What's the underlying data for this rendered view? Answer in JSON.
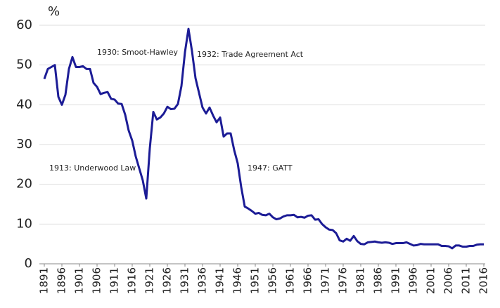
{
  "chart_data": {
    "type": "line",
    "ylabel": "%",
    "x": [
      1891,
      1892,
      1893,
      1894,
      1895,
      1896,
      1897,
      1898,
      1899,
      1900,
      1901,
      1902,
      1903,
      1904,
      1905,
      1906,
      1907,
      1908,
      1909,
      1910,
      1911,
      1912,
      1913,
      1914,
      1915,
      1916,
      1917,
      1918,
      1919,
      1920,
      1921,
      1922,
      1923,
      1924,
      1925,
      1926,
      1927,
      1928,
      1929,
      1930,
      1931,
      1932,
      1933,
      1934,
      1935,
      1936,
      1937,
      1938,
      1939,
      1940,
      1941,
      1942,
      1943,
      1944,
      1945,
      1946,
      1947,
      1948,
      1949,
      1950,
      1951,
      1952,
      1953,
      1954,
      1955,
      1956,
      1957,
      1958,
      1959,
      1960,
      1961,
      1962,
      1963,
      1964,
      1965,
      1966,
      1967,
      1968,
      1969,
      1970,
      1971,
      1972,
      1973,
      1974,
      1975,
      1976,
      1977,
      1978,
      1979,
      1980,
      1981,
      1982,
      1983,
      1984,
      1985,
      1986,
      1987,
      1988,
      1989,
      1990,
      1991,
      1992,
      1993,
      1994,
      1995,
      1996,
      1997,
      1998,
      1999,
      2000,
      2001,
      2002,
      2003,
      2004,
      2005,
      2006,
      2007,
      2008,
      2009,
      2010,
      2011,
      2012,
      2013,
      2014,
      2015,
      2016
    ],
    "series": [
      {
        "color": "#1c1c96",
        "values": [
          46.5,
          49,
          49.5,
          50,
          42,
          40,
          42.5,
          49,
          52,
          49.5,
          49.5,
          49.7,
          49,
          49,
          45.5,
          44.5,
          42.7,
          43,
          43.2,
          41.5,
          41.3,
          40.3,
          40.2,
          37.5,
          33.5,
          31,
          27,
          24,
          21,
          16.4,
          29,
          38.2,
          36.3,
          36.8,
          37.8,
          39.5,
          38.9,
          39,
          40.2,
          44.7,
          53.2,
          59.1,
          53.5,
          46.7,
          43,
          39.3,
          37.8,
          39.3,
          37.3,
          35.6,
          36.8,
          32,
          32.8,
          32.8,
          28.6,
          25.3,
          19.3,
          14.4,
          13.9,
          13.3,
          12.6,
          12.8,
          12.3,
          12.2,
          12.6,
          11.7,
          11.2,
          11.4,
          11.9,
          12.2,
          12.2,
          12.3,
          11.7,
          11.8,
          11.6,
          12.1,
          12.2,
          11.1,
          11.2,
          10,
          9.2,
          8.6,
          8.5,
          7.7,
          5.9,
          5.6,
          6.3,
          5.8,
          7,
          5.7,
          5,
          4.9,
          5.4,
          5.5,
          5.6,
          5.4,
          5.3,
          5.4,
          5.3,
          5,
          5.2,
          5.2,
          5.2,
          5.4,
          5,
          4.6,
          4.7,
          5,
          4.9,
          4.9,
          4.9,
          4.9,
          4.9,
          4.5,
          4.5,
          4.4,
          3.9,
          4.6,
          4.6,
          4.3,
          4.3,
          4.5,
          4.5,
          4.8,
          4.9,
          4.9
        ]
      }
    ],
    "xlim": [
      1891,
      2016
    ],
    "xticks": [
      1891,
      1896,
      1901,
      1906,
      1911,
      1916,
      1921,
      1926,
      1931,
      1936,
      1941,
      1946,
      1951,
      1956,
      1961,
      1966,
      1971,
      1976,
      1981,
      1986,
      1991,
      1996,
      2001,
      2006,
      2011,
      2016
    ],
    "ylim": [
      0,
      60
    ],
    "yticks": [
      0,
      10,
      20,
      30,
      40,
      50,
      60
    ],
    "grid": true,
    "annotations": [
      "1930: Smoot-Hawley",
      "1932: Trade Agreement Act",
      "1913: Underwood Law",
      "1947: GATT"
    ]
  }
}
